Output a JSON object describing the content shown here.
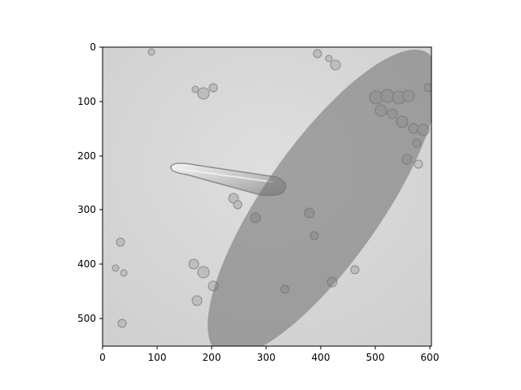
{
  "image": {
    "description_hidden": "",
    "extent_x": [
      0,
      604
    ],
    "extent_y": [
      0,
      550
    ],
    "background_gray": "#d9d9d9",
    "mask_color": "#8f8f8f"
  },
  "axes": {
    "x_ticks": [
      "0",
      "100",
      "200",
      "300",
      "400",
      "500",
      "600"
    ],
    "y_ticks": [
      "0",
      "100",
      "200",
      "300",
      "400",
      "500"
    ]
  }
}
